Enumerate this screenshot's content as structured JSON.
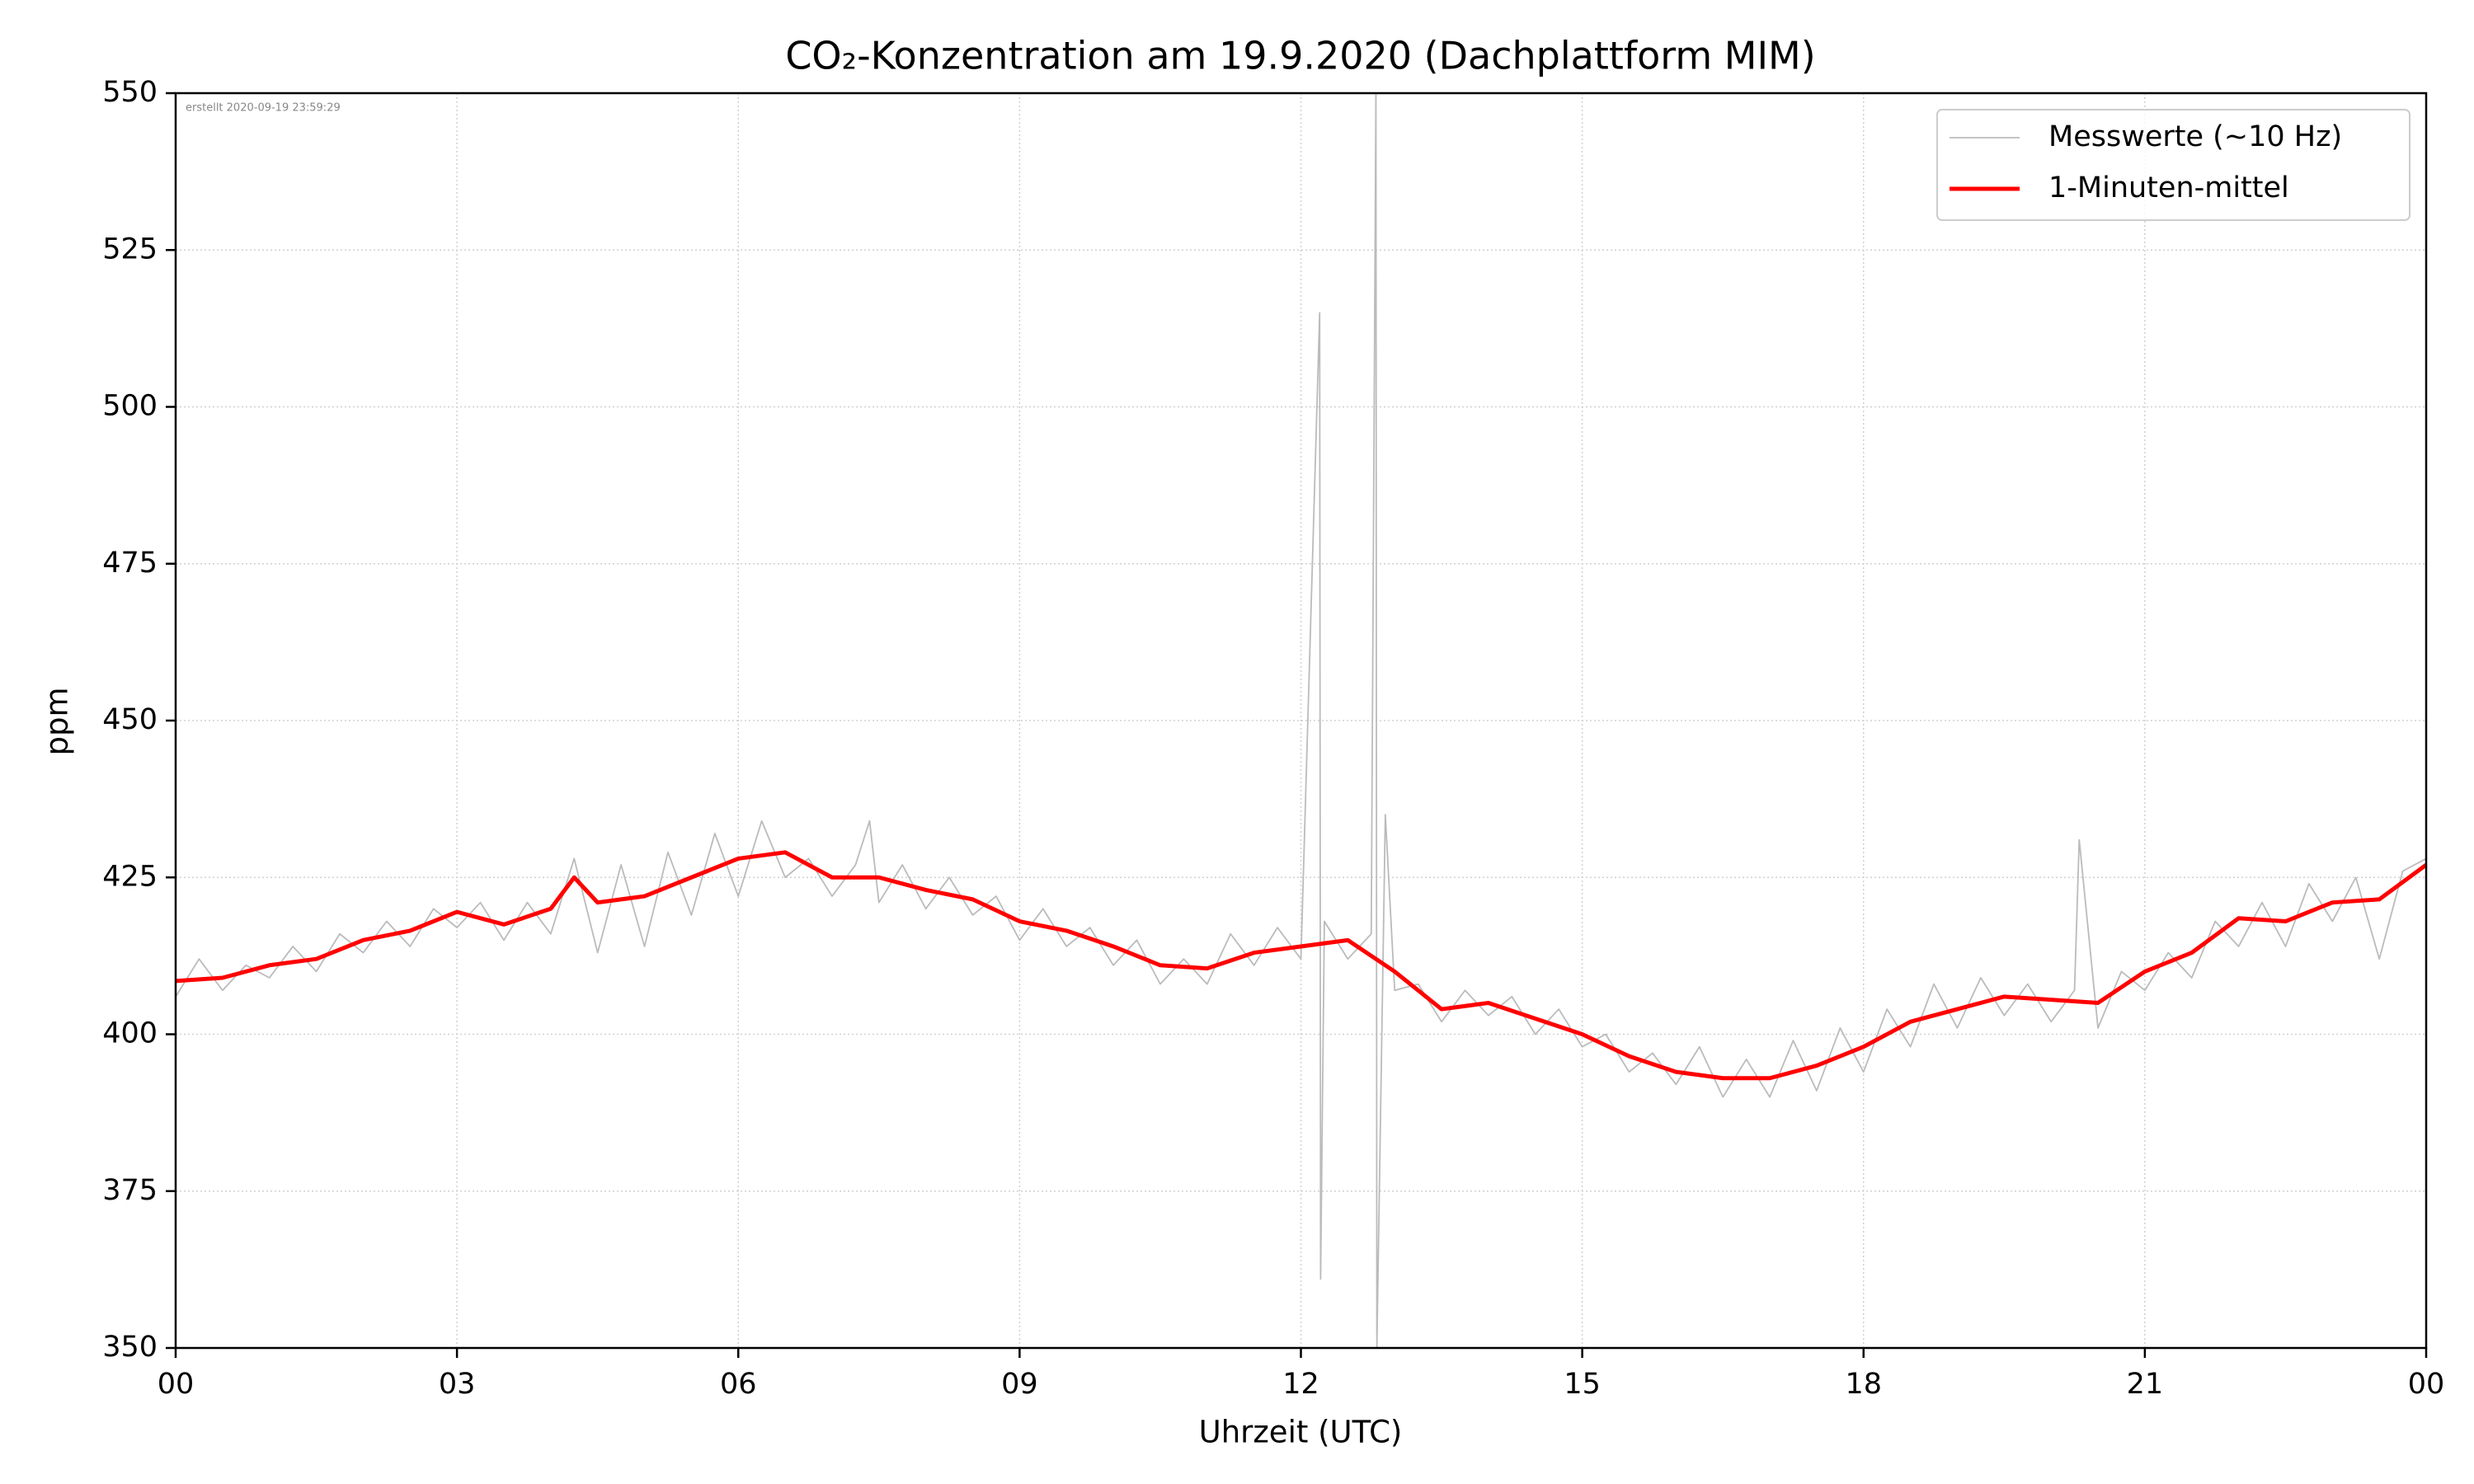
{
  "chart_data": {
    "type": "line",
    "title": "CO₂-Konzentration am 19.9.2020 (Dachplattform MIM)",
    "annotation": "erstellt 2020-09-19 23:59:29",
    "x_label": "Uhrzeit (UTC)",
    "y_label": "ppm",
    "xlim": [
      0,
      24
    ],
    "ylim": [
      350,
      550
    ],
    "xticks": [
      {
        "value": 0,
        "label": "00"
      },
      {
        "value": 3,
        "label": "03"
      },
      {
        "value": 6,
        "label": "06"
      },
      {
        "value": 9,
        "label": "09"
      },
      12,
      15,
      18,
      21,
      {
        "value": 24,
        "label": "00"
      }
    ],
    "yticks": [
      350,
      375,
      400,
      425,
      450,
      475,
      500,
      525,
      550
    ],
    "grid": true,
    "legend": "upper right",
    "series": [
      {
        "name": "Messwerte (~10 Hz)",
        "color": "#bbbbbb",
        "x": [
          0,
          0.25,
          0.5,
          0.75,
          1,
          1.25,
          1.5,
          1.75,
          2,
          2.25,
          2.5,
          2.75,
          3,
          3.25,
          3.5,
          3.75,
          4,
          4.25,
          4.5,
          4.75,
          5,
          5.25,
          5.5,
          5.75,
          6,
          6.25,
          6.5,
          6.75,
          7,
          7.25,
          7.4,
          7.5,
          7.75,
          8,
          8.25,
          8.5,
          8.75,
          9,
          9.25,
          9.5,
          9.75,
          10,
          10.25,
          10.5,
          10.75,
          11,
          11.25,
          11.5,
          11.75,
          12,
          12.2,
          12.21,
          12.25,
          12.5,
          12.75,
          12.8,
          12.81,
          12.9,
          13,
          13.25,
          13.5,
          13.75,
          14,
          14.25,
          14.5,
          14.75,
          15,
          15.25,
          15.5,
          15.75,
          16,
          16.25,
          16.5,
          16.75,
          17,
          17.25,
          17.5,
          17.75,
          18,
          18.25,
          18.5,
          18.75,
          19,
          19.25,
          19.5,
          19.75,
          20,
          20.25,
          20.3,
          20.5,
          20.75,
          21,
          21.25,
          21.5,
          21.75,
          22,
          22.25,
          22.5,
          22.75,
          23,
          23.25,
          23.5,
          23.75,
          24
        ],
        "values": [
          406,
          412,
          407,
          411,
          409,
          414,
          410,
          416,
          413,
          418,
          414,
          420,
          417,
          421,
          415,
          421,
          416,
          428,
          413,
          427,
          414,
          429,
          419,
          432,
          422,
          434,
          425,
          428,
          422,
          427,
          434,
          421,
          427,
          420,
          425,
          419,
          422,
          415,
          420,
          414,
          417,
          411,
          415,
          408,
          412,
          408,
          416,
          411,
          417,
          412,
          515,
          361,
          418,
          412,
          416,
          550,
          350,
          435,
          407,
          408,
          402,
          407,
          403,
          406,
          400,
          404,
          398,
          400,
          394,
          397,
          392,
          398,
          390,
          396,
          390,
          399,
          391,
          401,
          394,
          404,
          398,
          408,
          401,
          409,
          403,
          408,
          402,
          407,
          431,
          401,
          410,
          407,
          413,
          409,
          418,
          414,
          421,
          414,
          424,
          418,
          425,
          412,
          426,
          428
        ]
      },
      {
        "name": "1-Minuten-mittel",
        "color": "#ff0000",
        "x": [
          0,
          0.5,
          1,
          1.5,
          2,
          2.5,
          3,
          3.5,
          4,
          4.25,
          4.5,
          5,
          5.5,
          6,
          6.5,
          7,
          7.5,
          8,
          8.5,
          9,
          9.5,
          10,
          10.5,
          11,
          11.5,
          12,
          12.5,
          12.8,
          13,
          13.5,
          14,
          14.5,
          15,
          15.5,
          16,
          16.5,
          17,
          17.5,
          18,
          18.5,
          19,
          19.5,
          20,
          20.5,
          21,
          21.5,
          22,
          22.5,
          23,
          23.5,
          24
        ],
        "values": [
          408.5,
          409,
          411,
          412,
          415,
          416.5,
          419.5,
          417.5,
          420,
          425,
          421,
          422,
          425,
          428,
          429,
          425,
          425,
          423,
          421.5,
          418,
          416.5,
          414,
          411,
          410.5,
          413,
          414,
          415,
          412,
          410,
          404,
          405,
          402.5,
          400,
          396.5,
          394,
          393,
          393,
          395,
          398,
          402,
          404,
          406,
          405.5,
          405,
          410,
          413,
          418.5,
          418,
          421,
          421.5,
          427
        ]
      }
    ]
  }
}
